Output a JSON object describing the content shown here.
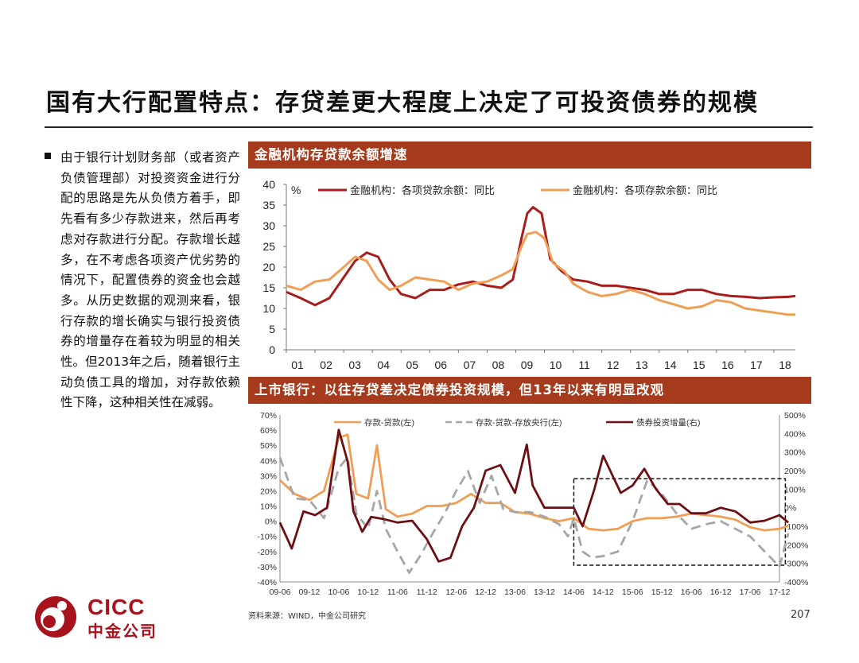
{
  "title": "国有大行配置特点：存贷差更大程度上决定了可投资债券的规模",
  "bullet": "由于银行计划财务部（或者资产负债管理部）对投资资金进行分配的思路是先从负债方着手，即先看有多少存款进来，然后再考虑对存款进行分配。存款增长越多，在不考虑各项资产优劣势的情况下，配置债券的资金也会越多。从历史数据的观测来看，银行存款的增长确实与银行投资债券的增量存在着较为明显的相关性。但2013年之后，随着银行主动负债工具的增加，对存款依赖性下降，这种相关性在减弱。",
  "source": "资料来源：WIND，中金公司研究",
  "page_number": "207",
  "logo": {
    "top": "CICC",
    "bottom": "中金公司"
  },
  "colors": {
    "header_bg": "#a53b1c",
    "loan": "#a81c1c",
    "deposit": "#ee9f55",
    "gap": "#a6a6a6",
    "bond": "#6b0f15",
    "logo": "#a8121c"
  },
  "chart_data": [
    {
      "type": "line",
      "title": "金融机构存贷款余额增速",
      "unit_label": "%",
      "ylim": [
        0,
        40
      ],
      "yticks": [
        "0",
        "5",
        "10",
        "15",
        "20",
        "25",
        "30",
        "35",
        "40"
      ],
      "x_labels": [
        "01",
        "02",
        "03",
        "04",
        "05",
        "06",
        "07",
        "08",
        "09",
        "10",
        "11",
        "12",
        "13",
        "14",
        "15",
        "16",
        "17",
        "18"
      ],
      "x_start": 2001.0,
      "x_end": 2018.75,
      "legend_position": "top",
      "series": [
        {
          "name": "金融机构：各项贷款余额：同比",
          "color": "#a81c1c",
          "points": [
            [
              2001.0,
              14
            ],
            [
              2001.5,
              12.5
            ],
            [
              2002.0,
              10.8
            ],
            [
              2002.5,
              12.5
            ],
            [
              2003.0,
              17.5
            ],
            [
              2003.4,
              21.5
            ],
            [
              2003.8,
              23.5
            ],
            [
              2004.2,
              22.5
            ],
            [
              2004.6,
              17
            ],
            [
              2005.0,
              13.5
            ],
            [
              2005.5,
              12.5
            ],
            [
              2006.0,
              14.5
            ],
            [
              2006.5,
              14.5
            ],
            [
              2007.0,
              15.8
            ],
            [
              2007.5,
              16.5
            ],
            [
              2008.0,
              15.5
            ],
            [
              2008.5,
              15
            ],
            [
              2008.9,
              17
            ],
            [
              2009.2,
              27
            ],
            [
              2009.4,
              33
            ],
            [
              2009.6,
              34.5
            ],
            [
              2009.9,
              33
            ],
            [
              2010.2,
              22
            ],
            [
              2010.6,
              19
            ],
            [
              2011.0,
              17
            ],
            [
              2011.5,
              16.5
            ],
            [
              2012.0,
              15.5
            ],
            [
              2012.5,
              15.5
            ],
            [
              2013.0,
              15
            ],
            [
              2013.5,
              14.5
            ],
            [
              2014.0,
              13.5
            ],
            [
              2014.5,
              13.5
            ],
            [
              2015.0,
              14.5
            ],
            [
              2015.5,
              14.5
            ],
            [
              2016.0,
              13.5
            ],
            [
              2016.5,
              13
            ],
            [
              2017.0,
              12.8
            ],
            [
              2017.5,
              12.5
            ],
            [
              2018.0,
              12.7
            ],
            [
              2018.5,
              12.8
            ],
            [
              2018.75,
              13
            ]
          ]
        },
        {
          "name": "金融机构：各项存款余额：同比",
          "color": "#ee9f55",
          "points": [
            [
              2001.0,
              15.5
            ],
            [
              2001.5,
              14.5
            ],
            [
              2002.0,
              16.5
            ],
            [
              2002.5,
              17
            ],
            [
              2003.0,
              20
            ],
            [
              2003.4,
              22.5
            ],
            [
              2003.8,
              21.5
            ],
            [
              2004.2,
              17
            ],
            [
              2004.6,
              14.5
            ],
            [
              2005.0,
              15.5
            ],
            [
              2005.5,
              17.5
            ],
            [
              2006.0,
              17
            ],
            [
              2006.5,
              16.5
            ],
            [
              2007.0,
              14.5
            ],
            [
              2007.5,
              16
            ],
            [
              2008.0,
              16.5
            ],
            [
              2008.5,
              18
            ],
            [
              2008.9,
              19.5
            ],
            [
              2009.2,
              25
            ],
            [
              2009.4,
              28
            ],
            [
              2009.7,
              28.5
            ],
            [
              2010.0,
              27
            ],
            [
              2010.3,
              21
            ],
            [
              2010.7,
              19
            ],
            [
              2011.0,
              16
            ],
            [
              2011.5,
              14
            ],
            [
              2012.0,
              13
            ],
            [
              2012.5,
              13.5
            ],
            [
              2013.0,
              14.5
            ],
            [
              2013.5,
              13.5
            ],
            [
              2014.0,
              12
            ],
            [
              2014.5,
              11
            ],
            [
              2015.0,
              10
            ],
            [
              2015.5,
              10.5
            ],
            [
              2016.0,
              12
            ],
            [
              2016.5,
              11.5
            ],
            [
              2017.0,
              10
            ],
            [
              2017.5,
              9.5
            ],
            [
              2018.0,
              9
            ],
            [
              2018.5,
              8.5
            ],
            [
              2018.75,
              8.5
            ]
          ]
        }
      ]
    },
    {
      "type": "line",
      "title": "上市银行：以往存贷差决定债券投资规模，但13年以来有明显改观",
      "y_left_lim": [
        -0.4,
        0.7
      ],
      "y_left_ticks": [
        "-40%",
        "-30%",
        "-20%",
        "-10%",
        "0%",
        "10%",
        "20%",
        "30%",
        "40%",
        "50%",
        "60%",
        "70%"
      ],
      "y_right_lim": [
        -4.0,
        5.0
      ],
      "y_right_ticks": [
        "-400%",
        "-300%",
        "-200%",
        "-100%",
        "0%",
        "100%",
        "200%",
        "300%",
        "400%",
        "500%"
      ],
      "x_labels": [
        "09-06",
        "09-12",
        "10-06",
        "10-12",
        "11-06",
        "11-12",
        "12-06",
        "12-12",
        "13-06",
        "13-12",
        "14-06",
        "14-12",
        "15-06",
        "15-12",
        "16-06",
        "16-12",
        "17-06",
        "17-12"
      ],
      "legend_position": "top",
      "highlight_box": {
        "x_from": 10.0,
        "x_to": 17.2,
        "y_from": -0.29,
        "y_to": 0.28
      },
      "series": [
        {
          "name": "存款-贷款(左)",
          "axis": "left",
          "color": "#ee9f55",
          "dash": false,
          "points": [
            [
              0,
              0.27
            ],
            [
              0.5,
              0.18
            ],
            [
              1.0,
              0.14
            ],
            [
              1.5,
              0.2
            ],
            [
              2.0,
              0.55
            ],
            [
              2.3,
              0.57
            ],
            [
              2.6,
              0.18
            ],
            [
              3.0,
              0.15
            ],
            [
              3.3,
              0.5
            ],
            [
              3.6,
              0.08
            ],
            [
              4.0,
              0.03
            ],
            [
              4.5,
              0.05
            ],
            [
              5.0,
              0.1
            ],
            [
              5.5,
              0.1
            ],
            [
              6.0,
              0.12
            ],
            [
              6.5,
              0.18
            ],
            [
              7.0,
              0.12
            ],
            [
              7.5,
              0.12
            ],
            [
              8.0,
              0.06
            ],
            [
              8.5,
              0.05
            ],
            [
              9.0,
              0.02
            ],
            [
              9.5,
              0.0
            ],
            [
              10.0,
              0.02
            ],
            [
              10.5,
              -0.05
            ],
            [
              11.0,
              -0.06
            ],
            [
              11.5,
              -0.05
            ],
            [
              12.0,
              0.0
            ],
            [
              12.5,
              0.02
            ],
            [
              13.0,
              0.02
            ],
            [
              13.5,
              0.03
            ],
            [
              14.0,
              0.05
            ],
            [
              14.5,
              0.04
            ],
            [
              15.0,
              0.03
            ],
            [
              15.5,
              0.01
            ],
            [
              16.0,
              -0.04
            ],
            [
              16.5,
              -0.06
            ],
            [
              17.0,
              -0.05
            ],
            [
              17.3,
              -0.03
            ]
          ]
        },
        {
          "name": "存款-贷款-存放央行(左)",
          "axis": "left",
          "color": "#a6a6a6",
          "dash": true,
          "points": [
            [
              0,
              0.42
            ],
            [
              0.5,
              0.15
            ],
            [
              1.0,
              0.14
            ],
            [
              1.5,
              0.02
            ],
            [
              2.0,
              0.35
            ],
            [
              2.3,
              0.42
            ],
            [
              2.6,
              0.05
            ],
            [
              3.0,
              -0.05
            ],
            [
              3.3,
              0.2
            ],
            [
              3.6,
              -0.05
            ],
            [
              4.0,
              -0.2
            ],
            [
              4.4,
              -0.34
            ],
            [
              4.8,
              -0.22
            ],
            [
              5.2,
              -0.08
            ],
            [
              5.6,
              0.05
            ],
            [
              6.0,
              0.2
            ],
            [
              6.4,
              0.33
            ],
            [
              6.8,
              0.12
            ],
            [
              7.2,
              0.3
            ],
            [
              7.6,
              0.08
            ],
            [
              8.0,
              0.06
            ],
            [
              8.5,
              0.06
            ],
            [
              9.0,
              0.03
            ],
            [
              9.5,
              -0.02
            ],
            [
              9.8,
              -0.1
            ],
            [
              10.0,
              0.02
            ],
            [
              10.3,
              -0.2
            ],
            [
              10.6,
              -0.24
            ],
            [
              11.0,
              -0.23
            ],
            [
              11.5,
              -0.2
            ],
            [
              12.0,
              0.0
            ],
            [
              12.5,
              0.27
            ],
            [
              13.0,
              0.18
            ],
            [
              13.5,
              0.05
            ],
            [
              14.0,
              -0.05
            ],
            [
              14.5,
              -0.02
            ],
            [
              15.0,
              0.0
            ],
            [
              15.5,
              -0.05
            ],
            [
              16.0,
              -0.1
            ],
            [
              16.5,
              -0.2
            ],
            [
              17.0,
              -0.3
            ],
            [
              17.3,
              -0.08
            ]
          ]
        },
        {
          "name": "债券投资增量(右)",
          "axis": "right",
          "color": "#6b0f15",
          "dash": false,
          "points": [
            [
              0,
              -0.8
            ],
            [
              0.4,
              -2.2
            ],
            [
              0.8,
              -0.2
            ],
            [
              1.2,
              -0.4
            ],
            [
              1.6,
              0.0
            ],
            [
              2.0,
              4.2
            ],
            [
              2.3,
              2.5
            ],
            [
              2.5,
              -0.2
            ],
            [
              2.8,
              -1.3
            ],
            [
              3.1,
              -0.5
            ],
            [
              3.5,
              -0.6
            ],
            [
              4.0,
              -0.8
            ],
            [
              4.5,
              -0.7
            ],
            [
              5.0,
              -1.7
            ],
            [
              5.4,
              -2.9
            ],
            [
              5.8,
              -2.7
            ],
            [
              6.2,
              -1.0
            ],
            [
              6.6,
              0.0
            ],
            [
              7.0,
              2.0
            ],
            [
              7.5,
              2.3
            ],
            [
              8.0,
              0.8
            ],
            [
              8.4,
              3.4
            ],
            [
              8.6,
              1.2
            ],
            [
              9.0,
              0.0
            ],
            [
              9.5,
              0.0
            ],
            [
              10.0,
              0.0
            ],
            [
              10.3,
              -1.0
            ],
            [
              10.7,
              1.0
            ],
            [
              11.0,
              2.8
            ],
            [
              11.3,
              1.8
            ],
            [
              11.6,
              0.8
            ],
            [
              12.0,
              1.2
            ],
            [
              12.4,
              2.1
            ],
            [
              12.8,
              1.0
            ],
            [
              13.2,
              0.2
            ],
            [
              13.6,
              0.2
            ],
            [
              14.0,
              -0.3
            ],
            [
              14.5,
              -0.3
            ],
            [
              15.0,
              0.0
            ],
            [
              15.5,
              -0.2
            ],
            [
              16.0,
              -0.8
            ],
            [
              16.5,
              -0.7
            ],
            [
              17.0,
              -0.4
            ],
            [
              17.3,
              -0.8
            ]
          ]
        }
      ]
    }
  ]
}
